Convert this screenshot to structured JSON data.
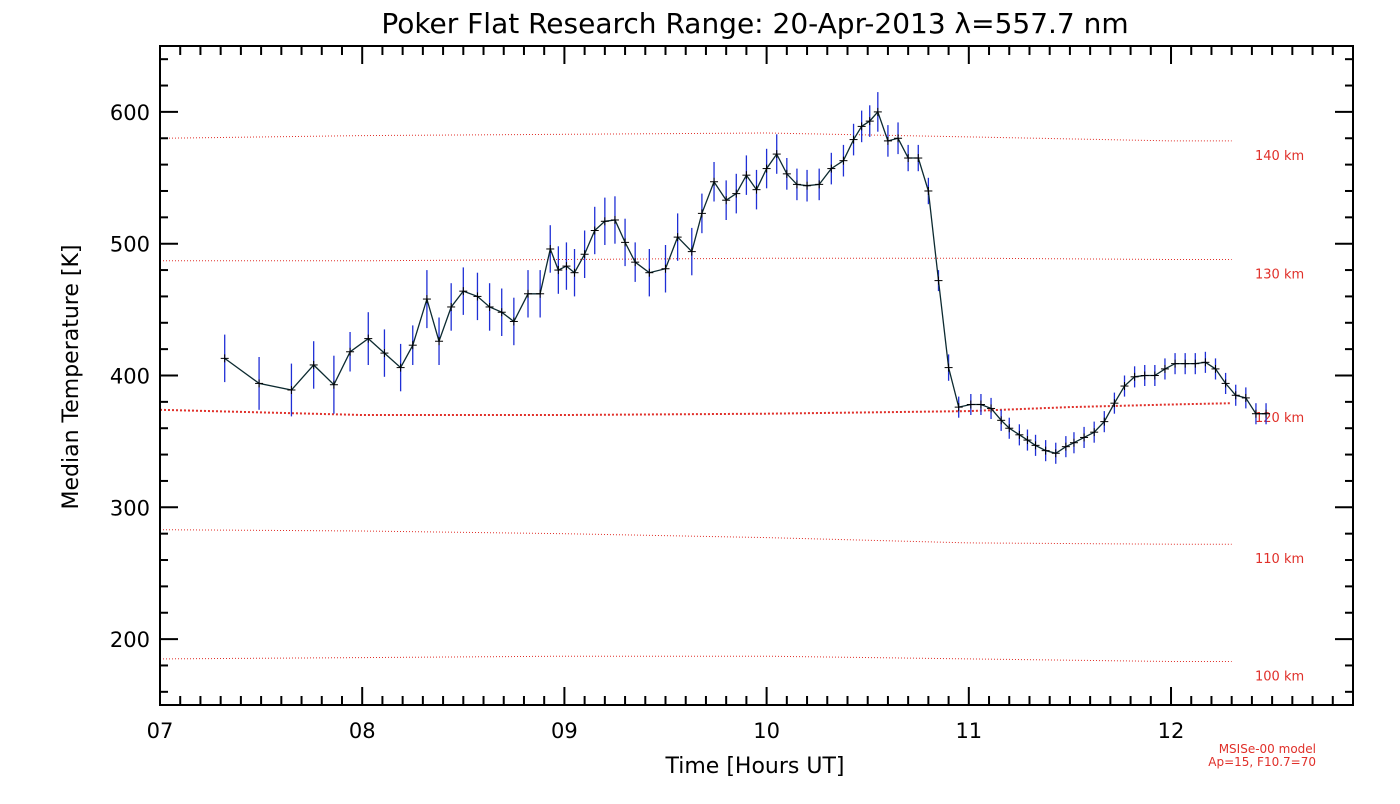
{
  "chart_data": {
    "type": "line",
    "title": "Poker Flat Research Range: 20-Apr-2013 λ=557.7 nm",
    "xlabel": "Time [Hours UT]",
    "ylabel": "Median Temperature [K]",
    "xlim": [
      7.0,
      12.9
    ],
    "ylim": [
      150,
      650
    ],
    "x_ticks": [
      7,
      8,
      9,
      10,
      11,
      12
    ],
    "x_tick_labels": [
      "07",
      "08",
      "09",
      "10",
      "11",
      "12"
    ],
    "y_ticks": [
      200,
      300,
      400,
      500,
      600
    ],
    "y_tick_labels": [
      "200",
      "300",
      "400",
      "500",
      "600"
    ],
    "grid": false,
    "series": [
      {
        "color": "#000000",
        "errorbar_color": "#1f2fd6",
        "x": [
          7.32,
          7.49,
          7.65,
          7.76,
          7.86,
          7.94,
          8.03,
          8.11,
          8.19,
          8.25,
          8.32,
          8.38,
          8.44,
          8.5,
          8.57,
          8.63,
          8.69,
          8.75,
          8.82,
          8.88,
          8.93,
          8.97,
          9.01,
          9.05,
          9.1,
          9.15,
          9.2,
          9.25,
          9.3,
          9.35,
          9.42,
          9.5,
          9.56,
          9.63,
          9.68,
          9.74,
          9.8,
          9.85,
          9.9,
          9.95,
          10.0,
          10.05,
          10.1,
          10.15,
          10.2,
          10.26,
          10.32,
          10.38,
          10.43,
          10.47,
          10.51,
          10.55,
          10.6,
          10.65,
          10.7,
          10.75,
          10.8,
          10.85,
          10.9,
          10.95,
          11.01,
          11.06,
          11.11,
          11.16,
          11.2,
          11.25,
          11.29,
          11.33,
          11.38,
          11.43,
          11.48,
          11.52,
          11.57,
          11.62,
          11.67,
          11.72,
          11.77,
          11.82,
          11.87,
          11.92,
          11.97,
          12.02,
          12.07,
          12.12,
          12.17,
          12.22,
          12.27,
          12.32,
          12.37,
          12.42,
          12.47
        ],
        "y": [
          413,
          394,
          389,
          408,
          393,
          418,
          428,
          417,
          406,
          423,
          458,
          426,
          452,
          464,
          460,
          452,
          448,
          441,
          462,
          462,
          496,
          480,
          483,
          478,
          492,
          510,
          517,
          518,
          501,
          486,
          478,
          481,
          505,
          494,
          523,
          547,
          533,
          538,
          552,
          541,
          557,
          568,
          553,
          545,
          544,
          545,
          557,
          563,
          579,
          589,
          593,
          600,
          578,
          580,
          565,
          565,
          540,
          472,
          406,
          376,
          378,
          378,
          375,
          366,
          360,
          355,
          351,
          347,
          343,
          341,
          346,
          349,
          353,
          357,
          365,
          379,
          392,
          399,
          400,
          400,
          405,
          409,
          409,
          409,
          410,
          405,
          394,
          385,
          383,
          371,
          371
        ],
        "err": [
          18,
          20,
          20,
          18,
          22,
          15,
          20,
          18,
          18,
          15,
          22,
          18,
          18,
          18,
          18,
          18,
          18,
          18,
          18,
          18,
          18,
          18,
          18,
          18,
          18,
          18,
          18,
          18,
          18,
          15,
          18,
          18,
          18,
          18,
          15,
          15,
          15,
          15,
          15,
          15,
          15,
          15,
          12,
          12,
          12,
          12,
          12,
          12,
          12,
          12,
          12,
          15,
          12,
          12,
          10,
          10,
          10,
          8,
          10,
          8,
          8,
          8,
          8,
          8,
          8,
          8,
          8,
          8,
          8,
          8,
          8,
          8,
          8,
          8,
          8,
          8,
          8,
          8,
          8,
          8,
          8,
          8,
          8,
          8,
          8,
          8,
          8,
          8,
          8,
          8,
          8
        ]
      }
    ],
    "reference_lines": [
      {
        "label": "140 km",
        "color": "#e0302a",
        "x": [
          7.0,
          8.0,
          9.0,
          10.0,
          11.0,
          12.0,
          12.3
        ],
        "y": [
          580,
          582,
          583,
          584,
          581,
          578,
          578
        ]
      },
      {
        "label": "130 km",
        "color": "#e0302a",
        "x": [
          7.0,
          8.0,
          9.0,
          10.0,
          11.0,
          12.0,
          12.3
        ],
        "y": [
          487,
          487,
          488,
          489,
          489,
          488,
          488
        ]
      },
      {
        "label": "120 km",
        "color": "#e0302a",
        "x": [
          7.0,
          7.5,
          8.0,
          9.0,
          10.0,
          10.5,
          11.0,
          11.5,
          12.0,
          12.3
        ],
        "y": [
          374,
          372,
          370,
          370,
          371,
          372,
          373,
          376,
          378,
          379
        ]
      },
      {
        "label": "110 km",
        "color": "#e0302a",
        "x": [
          7.0,
          8.0,
          9.0,
          10.0,
          11.0,
          12.0,
          12.3
        ],
        "y": [
          283,
          282,
          280,
          277,
          273,
          272,
          272
        ]
      },
      {
        "label": "100 km",
        "color": "#e0302a",
        "x": [
          7.0,
          8.0,
          9.0,
          10.0,
          11.0,
          12.0,
          12.3
        ],
        "y": [
          185,
          186,
          187,
          187,
          185,
          183,
          183
        ]
      }
    ],
    "notes": [
      "MSISe-00 model",
      "Ap=15, F10.7=70"
    ]
  }
}
